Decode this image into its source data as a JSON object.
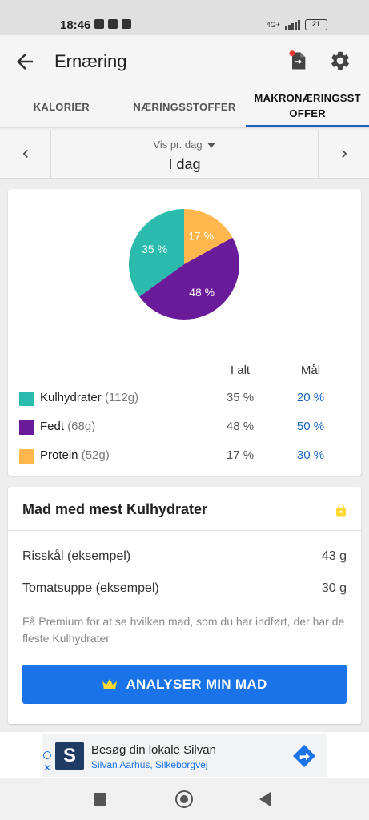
{
  "status_bar": {
    "time": "18:46",
    "network": "4G+",
    "battery": "21"
  },
  "app_bar": {
    "title": "Ernæring"
  },
  "tabs": [
    {
      "label": "KALORIER",
      "active": false
    },
    {
      "label": "NÆRINGSSTOFFER",
      "active": false
    },
    {
      "label": "MAKRONÆRINGSSTOFFER",
      "active": true
    }
  ],
  "date_nav": {
    "view_mode": "Vis pr. dag",
    "current": "I dag"
  },
  "chart_data": {
    "type": "pie",
    "slices": [
      {
        "label": "Kulhydrater",
        "value": 35,
        "display": "35 %",
        "color": "#2bbbad"
      },
      {
        "label": "Fedt",
        "value": 48,
        "display": "48 %",
        "color": "#6a1b9a"
      },
      {
        "label": "Protein",
        "value": 17,
        "display": "17 %",
        "color": "#ffb74d"
      }
    ]
  },
  "legend": {
    "header_total": "I alt",
    "header_goal": "Mål",
    "rows": [
      {
        "name": "Kulhydrater",
        "grams": "(112g)",
        "actual": "35 %",
        "goal": "20 %",
        "color": "#2bbbad"
      },
      {
        "name": "Fedt",
        "grams": "(68g)",
        "actual": "48 %",
        "goal": "50 %",
        "color": "#6a1b9a"
      },
      {
        "name": "Protein",
        "grams": "(52g)",
        "actual": "17 %",
        "goal": "30 %",
        "color": "#ffb74d"
      }
    ]
  },
  "foods": {
    "title": "Mad med mest Kulhydrater",
    "items": [
      {
        "name": "Risskål (eksempel)",
        "amount": "43 g"
      },
      {
        "name": "Tomatsuppe (eksempel)",
        "amount": "30 g"
      }
    ],
    "premium_note": "Få Premium for at se hvilken mad, som du har indført, der har de fleste Kulhydrater",
    "button_label": "ANALYSER MIN MAD"
  },
  "ad": {
    "logo_letter": "S",
    "title": "Besøg din lokale Silvan",
    "subtitle": "Silvan Aarhus, Silkeborgvej"
  },
  "colors": {
    "accent": "#1a73e8",
    "goal_text": "#1565c0",
    "lock": "#fdd835",
    "crown": "#fdd835"
  }
}
